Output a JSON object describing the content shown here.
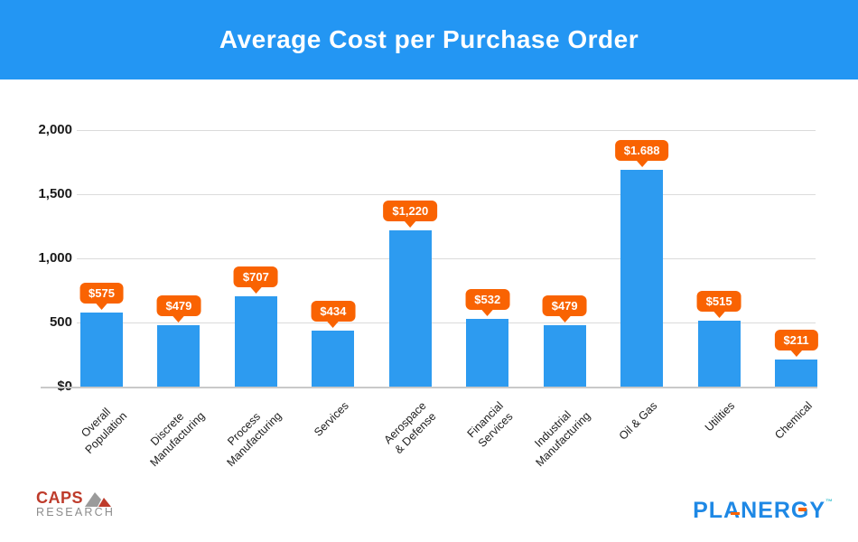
{
  "header": {
    "title": "Average Cost per Purchase Order"
  },
  "chart_data": {
    "type": "bar",
    "title": "Average Cost per Purchase Order",
    "categories": [
      "Overall\nPopulation",
      "Discrete\nManufacturing",
      "Process\nManufacturing",
      "Services",
      "Aerospace\n& Defense",
      "Financial\nServices",
      "Industrial\nManufacturing",
      "Oil & Gas",
      "Utilities",
      "Chemical"
    ],
    "values": [
      575,
      479,
      707,
      434,
      1220,
      532,
      479,
      1688,
      515,
      211
    ],
    "value_labels": [
      "$575",
      "$479",
      "$707",
      "$434",
      "$1,220",
      "$532",
      "$479",
      "$1.688",
      "$515",
      "$211"
    ],
    "yticks": [
      {
        "label": "2,000",
        "value": 2000
      },
      {
        "label": "1,500",
        "value": 1500
      },
      {
        "label": "1,000",
        "value": 1000
      },
      {
        "label": "500",
        "value": 500
      },
      {
        "label": "$0",
        "value": 0
      }
    ],
    "ylim": [
      0,
      2000
    ],
    "xlabel": "",
    "ylabel": "",
    "grid": "horizontal",
    "legend": "none",
    "bar_color": "#2D9BF0",
    "value_label_color": "#F96302"
  },
  "footer": {
    "caps_logo": {
      "line1": "CAPS",
      "line2": "RESEARCH"
    },
    "planergy_logo": {
      "text": "PLANERGY",
      "tm": "™"
    }
  },
  "colors": {
    "banner_blue": "#2396F3",
    "bar_blue": "#2D9BF0",
    "label_orange": "#F96302",
    "grid_gray": "#DBDBDB",
    "axis_text": "#1A1A1A",
    "caps_red": "#BE3B2B",
    "caps_gray": "#8C8C8C",
    "planergy_blue": "#1E88E5",
    "tm_teal": "#3EC1CF"
  }
}
